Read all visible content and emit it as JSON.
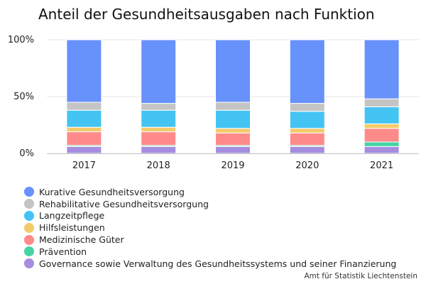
{
  "chart_data": {
    "type": "bar",
    "stacked": true,
    "title": "Anteil der Gesundheitsausgaben nach Funktion",
    "source": "Amt für Statistik Liechtenstein",
    "categories": [
      "2017",
      "2018",
      "2019",
      "2020",
      "2021"
    ],
    "ylim": [
      0,
      100
    ],
    "y_ticks": [
      "0%",
      "50%",
      "100%"
    ],
    "grid": true,
    "legend_position": "bottom-left",
    "series": [
      {
        "name": "Governance sowie Verwaltung des Gesundheitssystems und seiner Finanzierung",
        "color": "#a58ddf",
        "values": [
          6,
          6,
          6,
          6,
          6
        ]
      },
      {
        "name": "Prävention",
        "color": "#46d4a6",
        "values": [
          1,
          1,
          1,
          1,
          4
        ]
      },
      {
        "name": "Medizinische Güter",
        "color": "#ff8a8a",
        "values": [
          12,
          12,
          11,
          11,
          12
        ]
      },
      {
        "name": "Hilfsleistungen",
        "color": "#f4cb6a",
        "values": [
          4,
          4,
          4,
          4,
          4
        ]
      },
      {
        "name": "Langzeitpflege",
        "color": "#44c4f2",
        "values": [
          15,
          15,
          16,
          15,
          15
        ]
      },
      {
        "name": "Rehabilitative Gesundheitsversorgung",
        "color": "#c4c4c4",
        "values": [
          7,
          6,
          7,
          7,
          7
        ]
      },
      {
        "name": "Kurative Gesundheitsversorgung",
        "color": "#6791fb",
        "values": [
          55,
          56,
          55,
          56,
          52
        ]
      }
    ]
  }
}
